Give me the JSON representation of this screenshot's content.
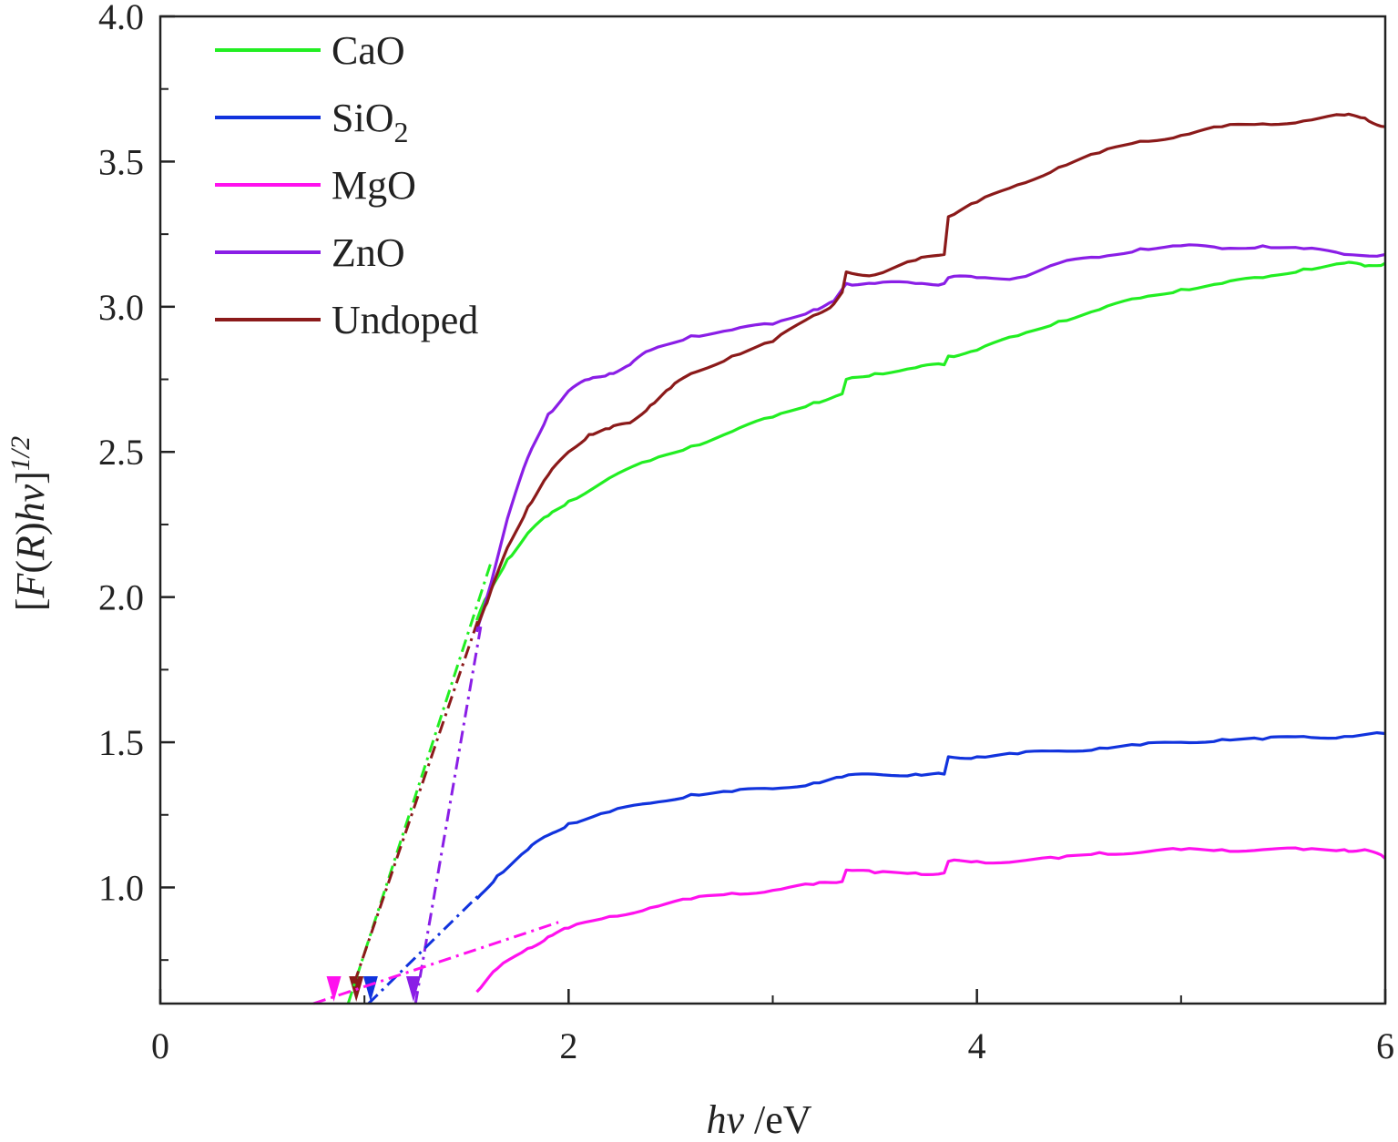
{
  "chart_data": {
    "type": "line",
    "xlabel_italic": "hv",
    "xlabel_unit": " /eV",
    "ylabel_parts": [
      "[",
      "F",
      "(",
      "R",
      ")",
      "hv",
      "]"
    ],
    "ylabel_exponent": "1/2",
    "xlim": [
      0,
      6
    ],
    "ylim": [
      0.6,
      4.0
    ],
    "x_ticks": [
      0,
      2,
      4,
      6
    ],
    "x_minor_ticks": [
      1,
      3,
      5
    ],
    "y_ticks": [
      1.0,
      1.5,
      2.0,
      2.5,
      3.0,
      3.5,
      4.0
    ],
    "y_tick_labels": [
      "1.0",
      "1.5",
      "2.0",
      "2.5",
      "3.0",
      "3.5",
      "4.0"
    ],
    "grid": false,
    "legend_position": "top-left",
    "series": [
      {
        "name": "CaO",
        "label_main": "CaO",
        "label_sub": "",
        "color": "#22ee22",
        "x": [
          1.55,
          1.6,
          1.7,
          1.8,
          1.9,
          2.0,
          2.2,
          2.4,
          2.6,
          2.8,
          3.0,
          3.2,
          3.34,
          3.36,
          3.5,
          3.7,
          3.84,
          3.86,
          4.0,
          4.2,
          4.4,
          4.6,
          4.8,
          5.0,
          5.2,
          5.4,
          5.6,
          5.8,
          5.9,
          6.0
        ],
        "y": [
          1.92,
          2.0,
          2.13,
          2.22,
          2.28,
          2.33,
          2.41,
          2.47,
          2.52,
          2.57,
          2.62,
          2.67,
          2.7,
          2.75,
          2.77,
          2.79,
          2.8,
          2.83,
          2.85,
          2.9,
          2.95,
          2.99,
          3.03,
          3.06,
          3.08,
          3.1,
          3.13,
          3.15,
          3.14,
          3.15
        ]
      },
      {
        "name": "SiO2",
        "label_main": "SiO",
        "label_sub": "2",
        "color": "#1133dd",
        "x": [
          1.55,
          1.65,
          1.8,
          1.9,
          2.0,
          2.2,
          2.4,
          2.6,
          2.8,
          3.0,
          3.2,
          3.34,
          3.5,
          3.7,
          3.84,
          3.86,
          4.0,
          4.2,
          4.4,
          4.6,
          4.8,
          5.0,
          5.2,
          5.4,
          5.6,
          5.8,
          6.0
        ],
        "y": [
          0.96,
          1.04,
          1.13,
          1.18,
          1.22,
          1.26,
          1.29,
          1.32,
          1.33,
          1.34,
          1.36,
          1.38,
          1.39,
          1.39,
          1.39,
          1.45,
          1.45,
          1.46,
          1.47,
          1.48,
          1.49,
          1.5,
          1.51,
          1.51,
          1.52,
          1.52,
          1.53
        ]
      },
      {
        "name": "MgO",
        "label_main": "MgO",
        "label_sub": "",
        "color": "#ff11ee",
        "x": [
          1.55,
          1.65,
          1.8,
          1.9,
          2.0,
          2.2,
          2.4,
          2.6,
          2.8,
          3.0,
          3.2,
          3.34,
          3.36,
          3.5,
          3.7,
          3.84,
          3.86,
          4.0,
          4.2,
          4.4,
          4.6,
          4.8,
          5.0,
          5.2,
          5.4,
          5.6,
          5.8,
          5.9,
          6.0
        ],
        "y": [
          0.64,
          0.72,
          0.79,
          0.83,
          0.86,
          0.9,
          0.93,
          0.96,
          0.98,
          0.99,
          1.01,
          1.02,
          1.06,
          1.05,
          1.05,
          1.05,
          1.09,
          1.09,
          1.09,
          1.1,
          1.12,
          1.12,
          1.13,
          1.13,
          1.13,
          1.13,
          1.13,
          1.13,
          1.1
        ]
      },
      {
        "name": "ZnO",
        "label_main": "ZnO",
        "label_sub": "",
        "color": "#8a1ee6",
        "x": [
          1.55,
          1.6,
          1.7,
          1.8,
          1.9,
          2.0,
          2.1,
          2.2,
          2.3,
          2.4,
          2.6,
          2.8,
          3.0,
          3.2,
          3.3,
          3.34,
          3.36,
          3.5,
          3.7,
          3.84,
          3.86,
          4.0,
          4.2,
          4.4,
          4.6,
          4.8,
          5.0,
          5.2,
          5.4,
          5.6,
          5.8,
          6.0
        ],
        "y": [
          1.88,
          2.0,
          2.27,
          2.48,
          2.63,
          2.71,
          2.75,
          2.77,
          2.8,
          2.85,
          2.9,
          2.92,
          2.94,
          2.99,
          3.02,
          3.06,
          3.08,
          3.08,
          3.08,
          3.08,
          3.1,
          3.1,
          3.1,
          3.15,
          3.17,
          3.2,
          3.21,
          3.2,
          3.21,
          3.2,
          3.18,
          3.18
        ]
      },
      {
        "name": "Undoped",
        "label_main": "Undoped",
        "label_sub": "",
        "color": "#8b1a1a",
        "x": [
          1.55,
          1.6,
          1.7,
          1.8,
          1.9,
          2.0,
          2.1,
          2.2,
          2.3,
          2.4,
          2.5,
          2.6,
          2.8,
          3.0,
          3.2,
          3.3,
          3.34,
          3.36,
          3.5,
          3.7,
          3.84,
          3.86,
          4.0,
          4.2,
          4.4,
          4.6,
          4.8,
          5.0,
          5.2,
          5.4,
          5.6,
          5.8,
          5.9,
          6.0
        ],
        "y": [
          1.9,
          1.98,
          2.17,
          2.31,
          2.42,
          2.5,
          2.56,
          2.58,
          2.6,
          2.66,
          2.72,
          2.77,
          2.83,
          2.88,
          2.97,
          3.01,
          3.05,
          3.12,
          3.11,
          3.16,
          3.18,
          3.31,
          3.36,
          3.42,
          3.48,
          3.53,
          3.57,
          3.59,
          3.62,
          3.63,
          3.64,
          3.66,
          3.65,
          3.62
        ]
      }
    ],
    "tangent_lines": [
      {
        "series": "CaO",
        "color": "#22ee22",
        "x": [
          0.92,
          1.62
        ],
        "y": [
          0.6,
          2.12
        ]
      },
      {
        "series": "Undoped",
        "color": "#8b1a1a",
        "x": [
          0.95,
          1.58
        ],
        "y": [
          0.67,
          1.97
        ]
      },
      {
        "series": "ZnO",
        "color": "#8a1ee6",
        "x": [
          1.25,
          1.57
        ],
        "y": [
          0.6,
          1.9
        ]
      },
      {
        "series": "SiO2",
        "color": "#1133dd",
        "x": [
          1.02,
          1.57
        ],
        "y": [
          0.6,
          0.98
        ]
      },
      {
        "series": "MgO",
        "color": "#ff11ee",
        "x": [
          0.75,
          1.95
        ],
        "y": [
          0.6,
          0.88
        ]
      }
    ],
    "arrows": [
      {
        "color": "#ff11ee",
        "x": 0.85,
        "y": 0.6
      },
      {
        "color": "#8b1a1a",
        "x": 0.96,
        "y": 0.6
      },
      {
        "color": "#1133dd",
        "x": 1.03,
        "y": 0.6
      },
      {
        "color": "#8a1ee6",
        "x": 1.24,
        "y": 0.6
      }
    ]
  }
}
